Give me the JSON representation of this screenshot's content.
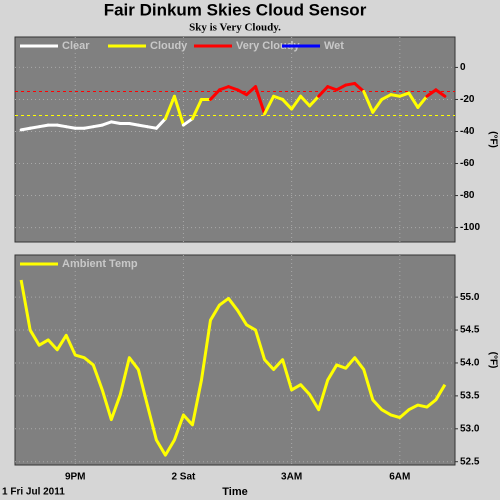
{
  "chart_data": [
    {
      "type": "line",
      "title": "Fair Dinkum Skies Cloud Sensor",
      "subtitle": "Sky is Very Cloudy.",
      "ylabel": "(°F)",
      "ylim": [
        -109,
        19
      ],
      "yticks": [
        0,
        -20,
        -40,
        -60,
        -80,
        -100
      ],
      "grid": true,
      "legend": "top-left",
      "thresholds": [
        -30,
        -15
      ],
      "series": [
        {
          "name": "Clear",
          "color": "#ffffff"
        },
        {
          "name": "Cloudy",
          "color": "#ffff00"
        },
        {
          "name": "Very Cloudy",
          "color": "#ff0000"
        },
        {
          "name": "Wet",
          "color": "#0000ff"
        }
      ],
      "values": [
        -39,
        -38,
        -37,
        -36,
        -36,
        -37,
        -38,
        -38,
        -37,
        -36,
        -34,
        -35,
        -35,
        -36,
        -37,
        -38,
        -32,
        -18,
        -36,
        -32,
        -20,
        -20,
        -14,
        -12,
        -14,
        -17,
        -12,
        -29,
        -18,
        -20,
        -26,
        -18,
        -24,
        -18,
        -12,
        -14,
        -11,
        -10,
        -15,
        -28,
        -20,
        -17,
        -18,
        -16,
        -25,
        -18,
        -14,
        -18
      ]
    },
    {
      "type": "line",
      "ylabel": "(°F)",
      "xlabel": "Time",
      "date_label": "1 Fri Jul 2011",
      "xlim": [
        19.33,
        31.53
      ],
      "xticks": [
        {
          "value": 21,
          "label": "9PM"
        },
        {
          "value": 24,
          "label": "2 Sat"
        },
        {
          "value": 27,
          "label": "3AM"
        },
        {
          "value": 30,
          "label": "6AM"
        }
      ],
      "ylim": [
        52.45,
        55.64
      ],
      "yticks": [
        {
          "value": 55,
          "label": "55.0"
        },
        54.5,
        {
          "value": 54,
          "label": "54.0"
        },
        53.5,
        {
          "value": 53,
          "label": "53.0"
        },
        52.5
      ],
      "grid": true,
      "legend": "top-left",
      "x": [
        19.5,
        19.75,
        20,
        20.25,
        20.5,
        20.75,
        21,
        21.25,
        21.5,
        21.75,
        22,
        22.25,
        22.5,
        22.75,
        23,
        23.25,
        23.5,
        23.75,
        24,
        24.25,
        24.5,
        24.75,
        25,
        25.25,
        25.5,
        25.75,
        26,
        26.25,
        26.5,
        26.75,
        27,
        27.25,
        27.5,
        27.75,
        28,
        28.25,
        28.5,
        28.75,
        29,
        29.25,
        29.5,
        29.75,
        30,
        30.25,
        30.5,
        30.75,
        31,
        31.25
      ],
      "series": [
        {
          "name": "Ambient Temp",
          "color": "#ffff00",
          "values": [
            55.26,
            54.5,
            54.27,
            54.35,
            54.2,
            54.42,
            54.12,
            54.08,
            53.97,
            53.59,
            53.14,
            53.52,
            54.08,
            53.9,
            53.36,
            52.83,
            52.6,
            52.83,
            53.21,
            53.06,
            53.74,
            54.65,
            54.88,
            54.98,
            54.8,
            54.58,
            54.5,
            54.05,
            53.9,
            54.05,
            53.59,
            53.67,
            53.52,
            53.29,
            53.74,
            53.97,
            53.92,
            54.08,
            53.9,
            53.44,
            53.29,
            53.21,
            53.17,
            53.29,
            53.36,
            53.33,
            53.44,
            53.67
          ]
        }
      ]
    }
  ]
}
